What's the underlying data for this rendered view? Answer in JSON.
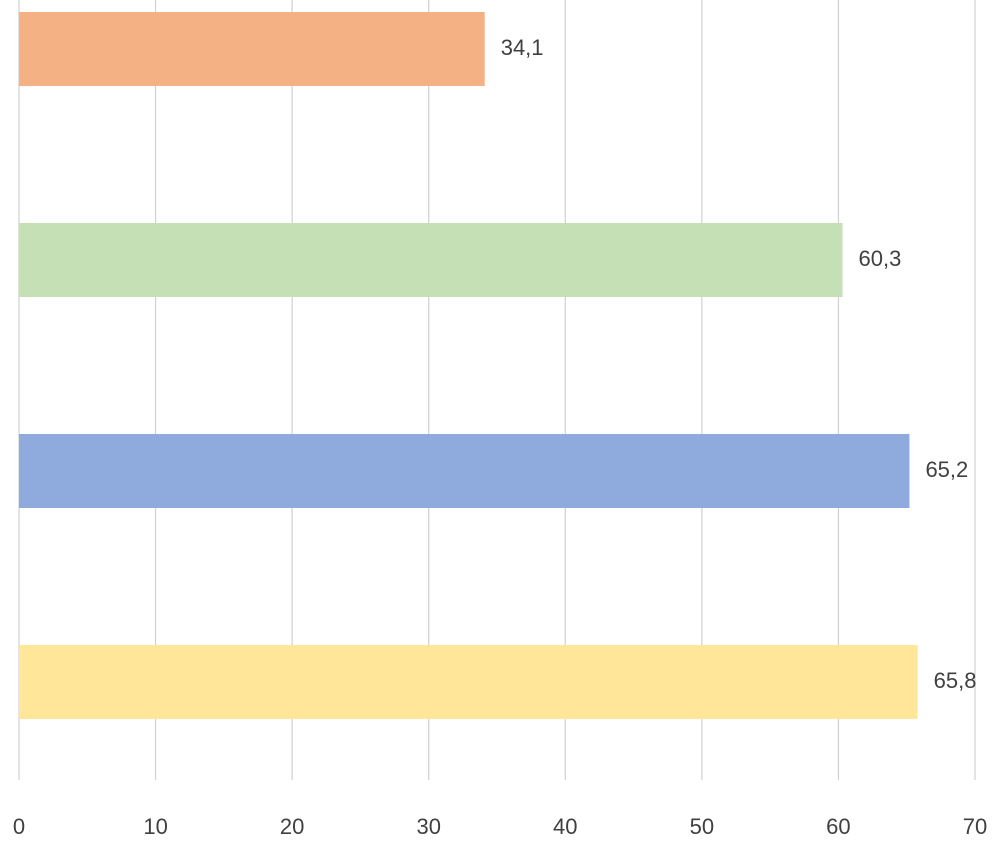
{
  "chart_data": {
    "type": "hbar",
    "categories": [
      null,
      null,
      null,
      null
    ],
    "values": [
      34.1,
      60.3,
      65.2,
      65.8
    ],
    "value_labels": [
      "34,1",
      "60,3",
      "65,2",
      "65,8"
    ],
    "colors": [
      "#f4b183",
      "#c5e0b4",
      "#8faadc",
      "#ffe699"
    ],
    "xlim": [
      0,
      70
    ],
    "xticks": [
      0,
      10,
      20,
      30,
      40,
      50,
      60,
      70
    ],
    "grid": true
  }
}
